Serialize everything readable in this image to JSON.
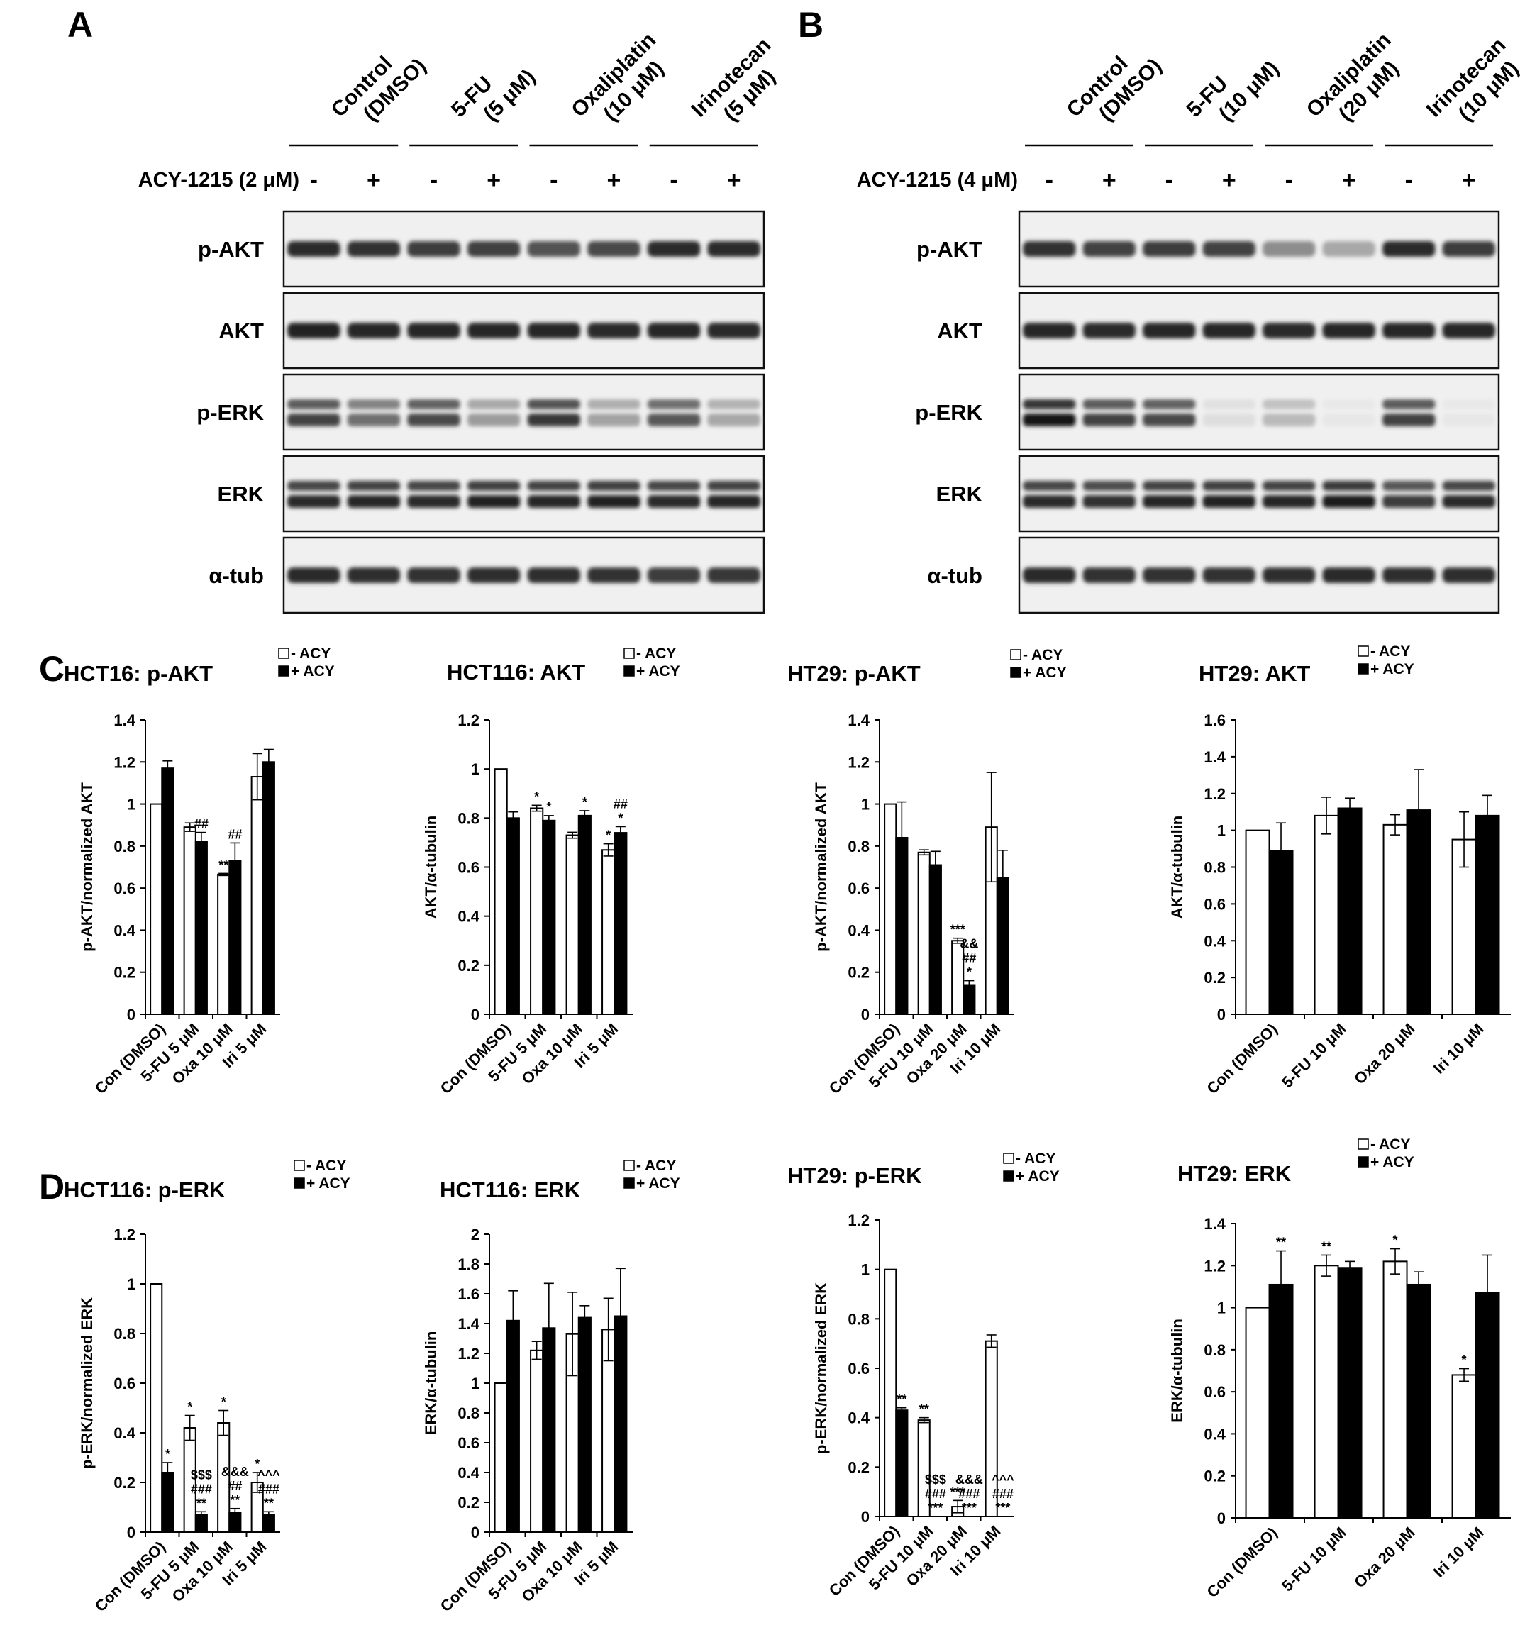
{
  "panels": {
    "a": "A",
    "b": "B",
    "c": "C",
    "d": "D"
  },
  "blots": [
    {
      "letter": "A",
      "treatment_label": "ACY-1215 (2 μM)",
      "groups": [
        {
          "l1": "Control",
          "l2": "(DMSO)"
        },
        {
          "l1": "5-FU",
          "l2": "(5 μM)"
        },
        {
          "l1": "Oxaliplatin",
          "l2": "(10 μM)"
        },
        {
          "l1": "Irinotecan",
          "l2": "(5 μM)"
        }
      ],
      "signs": [
        "-",
        "+",
        "-",
        "+",
        "-",
        "+",
        "-",
        "+"
      ],
      "rows": [
        "p-AKT",
        "AKT",
        "p-ERK",
        "ERK",
        "α-tub"
      ],
      "intensity": [
        [
          0.85,
          0.82,
          0.78,
          0.76,
          0.68,
          0.72,
          0.85,
          0.85
        ],
        [
          0.9,
          0.88,
          0.88,
          0.88,
          0.88,
          0.86,
          0.88,
          0.86
        ],
        [
          0.75,
          0.55,
          0.72,
          0.35,
          0.8,
          0.32,
          0.65,
          0.3
        ],
        [
          0.85,
          0.88,
          0.85,
          0.9,
          0.88,
          0.9,
          0.85,
          0.88
        ],
        [
          0.85,
          0.84,
          0.82,
          0.84,
          0.84,
          0.82,
          0.78,
          0.8
        ]
      ]
    },
    {
      "letter": "B",
      "treatment_label": "ACY-1215 (4 μM)",
      "groups": [
        {
          "l1": "Control",
          "l2": "(DMSO)"
        },
        {
          "l1": "5-FU",
          "l2": "(10 μM)"
        },
        {
          "l1": "Oxaliplatin",
          "l2": "(20 μM)"
        },
        {
          "l1": "Irinotecan",
          "l2": "(10 μM)"
        }
      ],
      "signs": [
        "-",
        "+",
        "-",
        "+",
        "-",
        "+",
        "-",
        "+"
      ],
      "rows": [
        "p-AKT",
        "AKT",
        "p-ERK",
        "ERK",
        "α-tub"
      ],
      "intensity": [
        [
          0.82,
          0.75,
          0.78,
          0.75,
          0.42,
          0.3,
          0.85,
          0.78
        ],
        [
          0.88,
          0.85,
          0.88,
          0.88,
          0.85,
          0.88,
          0.88,
          0.88
        ],
        [
          0.95,
          0.75,
          0.72,
          0.06,
          0.22,
          0.02,
          0.75,
          0.02
        ],
        [
          0.85,
          0.82,
          0.88,
          0.9,
          0.88,
          0.92,
          0.78,
          0.85
        ],
        [
          0.85,
          0.82,
          0.82,
          0.82,
          0.84,
          0.86,
          0.84,
          0.84
        ]
      ]
    }
  ],
  "chart_data": [
    {
      "type": "bar",
      "title": "HCT16: p-AKT",
      "ylabel": "p-AKT/normalized AKT",
      "categories": [
        "Con (DMSO)",
        "5-FU 5 μM",
        "Oxa 10 μM",
        "Iri 5 μM"
      ],
      "ylim": [
        0,
        1.4
      ],
      "yticks": [
        "0",
        "0.2",
        "0.4",
        "0.6",
        "0.8",
        "1",
        "1.2",
        "1.4"
      ],
      "legend": [
        "- ACY",
        "+ ACY"
      ],
      "series": [
        {
          "name": "- ACY",
          "values": [
            1.0,
            0.89,
            0.665,
            1.13
          ],
          "errors": [
            0,
            0.02,
            0.005,
            0.11
          ],
          "annotations": [
            "",
            "",
            "**",
            ""
          ]
        },
        {
          "name": "+ ACY",
          "values": [
            1.17,
            0.82,
            0.73,
            1.2
          ],
          "errors": [
            0.035,
            0.045,
            0.085,
            0.06
          ],
          "annotations": [
            "",
            "##",
            "##",
            ""
          ]
        }
      ]
    },
    {
      "type": "bar",
      "title": "HCT116: AKT",
      "ylabel": "AKT/α-tubulin",
      "categories": [
        "Con (DMSO)",
        "5-FU 5 μM",
        "Oxa 10 μM",
        "Iri 5 μM"
      ],
      "ylim": [
        0,
        1.2
      ],
      "yticks": [
        "0",
        "0.2",
        "0.4",
        "0.6",
        "0.8",
        "1",
        "1.2"
      ],
      "legend": [
        "- ACY",
        "+ ACY"
      ],
      "series": [
        {
          "name": "- ACY",
          "values": [
            1.0,
            0.84,
            0.73,
            0.67
          ],
          "errors": [
            0,
            0.012,
            0.012,
            0.025
          ],
          "annotations": [
            "",
            "*",
            "",
            "*"
          ]
        },
        {
          "name": "+ ACY",
          "values": [
            0.8,
            0.79,
            0.81,
            0.74
          ],
          "errors": [
            0.025,
            0.02,
            0.02,
            0.025
          ],
          "annotations": [
            "",
            "*",
            "*",
            "##\n*"
          ]
        }
      ]
    },
    {
      "type": "bar",
      "title": "HT29: p-AKT",
      "ylabel": "p-AKT/normalized AKT",
      "categories": [
        "Con (DMSO)",
        "5-FU 10 μM",
        "Oxa 20 μM",
        "Iri 10 μM"
      ],
      "ylim": [
        0,
        1.4
      ],
      "yticks": [
        "0",
        "0.2",
        "0.4",
        "0.6",
        "0.8",
        "1",
        "1.2",
        "1.4"
      ],
      "legend": [
        "- ACY",
        "+ ACY"
      ],
      "series": [
        {
          "name": "- ACY",
          "values": [
            1.0,
            0.77,
            0.35,
            0.89
          ],
          "errors": [
            0,
            0.012,
            0.012,
            0.26
          ],
          "annotations": [
            "",
            "",
            "***",
            ""
          ]
        },
        {
          "name": "+ ACY",
          "values": [
            0.84,
            0.71,
            0.14,
            0.65
          ],
          "errors": [
            0.17,
            0.065,
            0.02,
            0.13
          ],
          "annotations": [
            "",
            "",
            "&&\n##\n*",
            ""
          ]
        }
      ]
    },
    {
      "type": "bar",
      "title": "HT29: AKT",
      "ylabel": "AKT/α-tubulin",
      "categories": [
        "Con (DMSO)",
        "5-FU 10 μM",
        "Oxa 20 μM",
        "Iri 10 μM"
      ],
      "ylim": [
        0,
        1.6
      ],
      "yticks": [
        "0",
        "0.2",
        "0.4",
        "0.6",
        "0.8",
        "1",
        "1.2",
        "1.4",
        "1.6"
      ],
      "legend": [
        "- ACY",
        "+ ACY"
      ],
      "series": [
        {
          "name": "- ACY",
          "values": [
            1.0,
            1.08,
            1.03,
            0.95
          ],
          "errors": [
            0,
            0.1,
            0.055,
            0.15
          ],
          "annotations": [
            "",
            "",
            "",
            ""
          ]
        },
        {
          "name": "+ ACY",
          "values": [
            0.89,
            1.12,
            1.11,
            1.08
          ],
          "errors": [
            0.15,
            0.055,
            0.22,
            0.11
          ],
          "annotations": [
            "",
            "",
            "",
            ""
          ]
        }
      ]
    },
    {
      "type": "bar",
      "title": "HCT116: p-ERK",
      "ylabel": "p-ERK/normalized ERK",
      "categories": [
        "Con (DMSO)",
        "5-FU 5 μM",
        "Oxa 10 μM",
        "Iri 5 μM"
      ],
      "ylim": [
        0,
        1.2
      ],
      "yticks": [
        "0",
        "0.2",
        "0.4",
        "0.6",
        "0.8",
        "1",
        "1.2"
      ],
      "legend": [
        "- ACY",
        "+ ACY"
      ],
      "series": [
        {
          "name": "- ACY",
          "values": [
            1.0,
            0.42,
            0.44,
            0.2
          ],
          "errors": [
            0,
            0.05,
            0.05,
            0.04
          ],
          "annotations": [
            "",
            "*",
            "*",
            "*"
          ]
        },
        {
          "name": "+ ACY",
          "values": [
            0.24,
            0.07,
            0.08,
            0.07
          ],
          "errors": [
            0.04,
            0.012,
            0.015,
            0.012
          ],
          "annotations": [
            "*",
            "$$$\n###\n**",
            "&&&\n##\n**",
            "^^^\n###\n**"
          ]
        }
      ]
    },
    {
      "type": "bar",
      "title": "HCT116: ERK",
      "ylabel": "ERK/α-tubulin",
      "categories": [
        "Con (DMSO)",
        "5-FU 5 μM",
        "Oxa 10 μM",
        "Iri 5 μM"
      ],
      "ylim": [
        0,
        2
      ],
      "yticks": [
        "0",
        "0.2",
        "0.4",
        "0.6",
        "0.8",
        "1",
        "1.2",
        "1.4",
        "1.6",
        "1.8",
        "2"
      ],
      "legend": [
        "- ACY",
        "+ ACY"
      ],
      "series": [
        {
          "name": "- ACY",
          "values": [
            1.0,
            1.22,
            1.33,
            1.36
          ],
          "errors": [
            0,
            0.06,
            0.28,
            0.21
          ],
          "annotations": [
            "",
            "",
            "",
            ""
          ]
        },
        {
          "name": "+ ACY",
          "values": [
            1.42,
            1.37,
            1.44,
            1.45
          ],
          "errors": [
            0.2,
            0.3,
            0.08,
            0.32
          ],
          "annotations": [
            "",
            "",
            "",
            ""
          ]
        }
      ]
    },
    {
      "type": "bar",
      "title": "HT29: p-ERK",
      "ylabel": "p-ERK/normalized ERK",
      "categories": [
        "Con (DMSO)",
        "5-FU 10 μM",
        "Oxa 20 μM",
        "Iri 10 μM"
      ],
      "ylim": [
        0,
        1.2
      ],
      "yticks": [
        "0",
        "0.2",
        "0.4",
        "0.6",
        "0.8",
        "1",
        "1.2"
      ],
      "legend": [
        "- ACY",
        "+ ACY"
      ],
      "series": [
        {
          "name": "- ACY",
          "values": [
            1.0,
            0.39,
            0.04,
            0.71
          ],
          "errors": [
            0,
            0.01,
            0.025,
            0.025
          ],
          "annotations": [
            "",
            "**",
            "***",
            ""
          ]
        },
        {
          "name": "+ ACY",
          "values": [
            0.43,
            0.0,
            0.0,
            0.0
          ],
          "errors": [
            0.01,
            0,
            0,
            0
          ],
          "annotations": [
            "**",
            "$$$\n###\n***",
            "&&&\n###\n***",
            "^^^\n###\n***"
          ]
        }
      ]
    },
    {
      "type": "bar",
      "title": "HT29: ERK",
      "ylabel": "ERK/α-tubulin",
      "categories": [
        "Con (DMSO)",
        "5-FU 10 μM",
        "Oxa 20 μM",
        "Iri 10 μM"
      ],
      "ylim": [
        0,
        1.4
      ],
      "yticks": [
        "0",
        "0.2",
        "0.4",
        "0.6",
        "0.8",
        "1",
        "1.2",
        "1.4"
      ],
      "legend": [
        "- ACY",
        "+ ACY"
      ],
      "series": [
        {
          "name": "- ACY",
          "values": [
            1.0,
            1.2,
            1.22,
            0.68
          ],
          "errors": [
            0,
            0.05,
            0.06,
            0.03
          ],
          "annotations": [
            "",
            "**",
            "*",
            "*"
          ]
        },
        {
          "name": "+ ACY",
          "values": [
            1.11,
            1.19,
            1.11,
            1.07
          ],
          "errors": [
            0.16,
            0.03,
            0.06,
            0.18
          ],
          "annotations": [
            "**",
            "",
            "",
            ""
          ]
        }
      ]
    }
  ]
}
